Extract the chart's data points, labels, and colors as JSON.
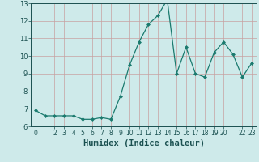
{
  "x": [
    0,
    1,
    2,
    3,
    4,
    5,
    6,
    7,
    8,
    9,
    10,
    11,
    12,
    13,
    14,
    15,
    16,
    17,
    18,
    19,
    20,
    21,
    22,
    23
  ],
  "y": [
    6.9,
    6.6,
    6.6,
    6.6,
    6.6,
    6.4,
    6.4,
    6.5,
    6.4,
    7.7,
    9.5,
    10.8,
    11.8,
    12.3,
    13.2,
    9.0,
    10.5,
    9.0,
    8.8,
    10.2,
    10.8,
    10.1,
    8.8,
    9.6
  ],
  "line_color": "#1a7a6e",
  "marker": "D",
  "marker_size": 2.0,
  "bg_color": "#ceeaea",
  "grid_color": "#c8a0a0",
  "xlabel": "Humidex (Indice chaleur)",
  "ylim": [
    6,
    13
  ],
  "xlim_min": -0.5,
  "xlim_max": 23.5,
  "yticks": [
    6,
    7,
    8,
    9,
    10,
    11,
    12,
    13
  ],
  "xticks": [
    0,
    2,
    3,
    4,
    5,
    6,
    7,
    8,
    9,
    10,
    11,
    12,
    13,
    14,
    15,
    16,
    17,
    18,
    19,
    20,
    22,
    23
  ],
  "xtick_labels": [
    "0",
    "2",
    "3",
    "4",
    "5",
    "6",
    "7",
    "8",
    "9",
    "10",
    "11",
    "12",
    "13",
    "14",
    "15",
    "16",
    "17",
    "18",
    "19",
    "20",
    "22",
    "23"
  ],
  "tick_color": "#1a5050",
  "tick_fontsize": 5.5,
  "xlabel_fontsize": 7.5,
  "linewidth": 0.9
}
